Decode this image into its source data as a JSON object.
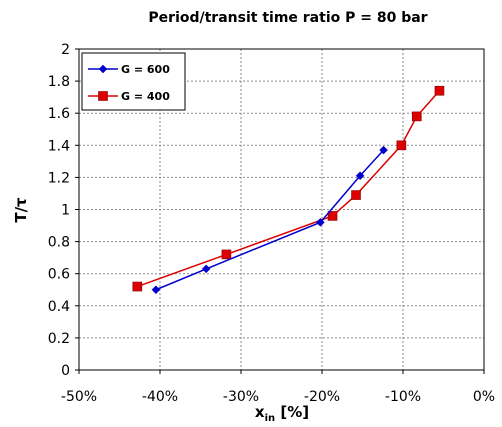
{
  "chart_data": {
    "type": "line",
    "title": "Period/transit time ratio P = 80 bar",
    "xlabel": {
      "main": "x",
      "sub": "in",
      "rest": " [%]"
    },
    "ylabel": "T/τ",
    "xlim": [
      -50,
      0
    ],
    "ylim": [
      0,
      2
    ],
    "x_ticks": [
      -50,
      -40,
      -30,
      -20,
      -10,
      0
    ],
    "x_tick_labels": [
      "-50%",
      "-40%",
      "-30%",
      "-20%",
      "-10%",
      "0%"
    ],
    "y_ticks": [
      0,
      0.2,
      0.4,
      0.6,
      0.8,
      1,
      1.2,
      1.4,
      1.6,
      1.8,
      2
    ],
    "y_tick_labels": [
      "0",
      "0.2",
      "0.4",
      "0.6",
      "0.8",
      "1",
      "1.2",
      "1.4",
      "1.6",
      "1.8",
      "2"
    ],
    "grid": true,
    "legend_position": "top-left",
    "series": [
      {
        "name": "G = 600",
        "color": "#0000cc",
        "marker": "diamond",
        "x": [
          -40.5,
          -34.3,
          -20.2,
          -15.3,
          -12.4
        ],
        "y": [
          0.5,
          0.63,
          0.92,
          1.21,
          1.37
        ]
      },
      {
        "name": "G = 400",
        "color": "#dd0000",
        "marker": "square",
        "x": [
          -42.8,
          -31.8,
          -18.7,
          -15.8,
          -10.2,
          -8.3,
          -5.5
        ],
        "y": [
          0.52,
          0.72,
          0.96,
          1.09,
          1.4,
          1.58,
          1.74
        ]
      }
    ]
  }
}
